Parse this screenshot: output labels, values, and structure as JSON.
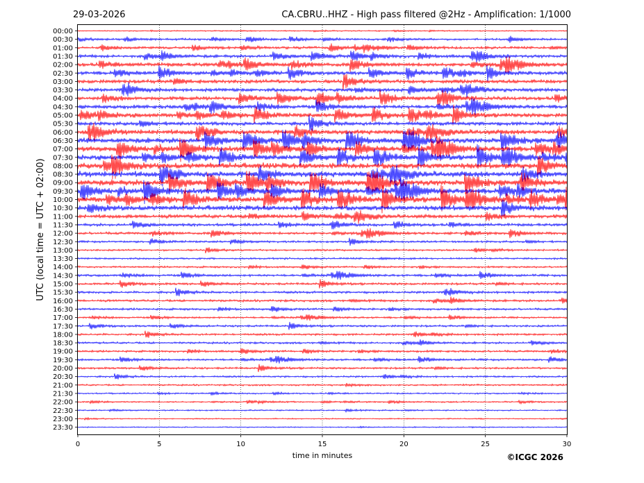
{
  "date": "29-03-2026",
  "title": "CA.CBRU..HHZ - High pass filtered @2Hz - Amplification: 1/1000",
  "copyright": "©ICGC 2026",
  "chart_data": {
    "type": "helicorder",
    "xlabel": "time in minutes",
    "ylabel": "UTC (local time = UTC + 02:00)",
    "xlim": [
      0,
      30
    ],
    "xticks": [
      0,
      5,
      10,
      15,
      20,
      25,
      30
    ],
    "grid": "vertical dotted every 5 minutes",
    "trace_colors": [
      "#ff0000",
      "#0000ff"
    ],
    "rows": [
      {
        "label": "00:00",
        "activity": 0.05
      },
      {
        "label": "00:30",
        "activity": 0.25
      },
      {
        "label": "01:00",
        "activity": 0.35
      },
      {
        "label": "01:30",
        "activity": 0.45
      },
      {
        "label": "02:00",
        "activity": 0.6
      },
      {
        "label": "02:30",
        "activity": 0.55
      },
      {
        "label": "03:00",
        "activity": 0.6
      },
      {
        "label": "03:30",
        "activity": 0.55
      },
      {
        "label": "04:00",
        "activity": 0.6
      },
      {
        "label": "04:30",
        "activity": 0.6
      },
      {
        "label": "05:00",
        "activity": 0.7
      },
      {
        "label": "05:30",
        "activity": 0.6
      },
      {
        "label": "06:00",
        "activity": 0.8
      },
      {
        "label": "06:30",
        "activity": 0.9
      },
      {
        "label": "07:00",
        "activity": 0.9
      },
      {
        "label": "07:30",
        "activity": 0.85
      },
      {
        "label": "08:00",
        "activity": 1.0
      },
      {
        "label": "08:30",
        "activity": 1.0
      },
      {
        "label": "09:00",
        "activity": 1.0
      },
      {
        "label": "09:30",
        "activity": 0.9
      },
      {
        "label": "10:00",
        "activity": 0.95
      },
      {
        "label": "10:30",
        "activity": 0.85
      },
      {
        "label": "11:00",
        "activity": 0.6
      },
      {
        "label": "11:30",
        "activity": 0.4
      },
      {
        "label": "12:00",
        "activity": 0.35
      },
      {
        "label": "12:30",
        "activity": 0.25
      },
      {
        "label": "13:00",
        "activity": 0.2
      },
      {
        "label": "13:30",
        "activity": 0.2
      },
      {
        "label": "14:00",
        "activity": 0.2
      },
      {
        "label": "14:30",
        "activity": 0.3
      },
      {
        "label": "15:00",
        "activity": 0.3
      },
      {
        "label": "15:30",
        "activity": 0.3
      },
      {
        "label": "16:00",
        "activity": 0.3
      },
      {
        "label": "16:30",
        "activity": 0.25
      },
      {
        "label": "17:00",
        "activity": 0.2
      },
      {
        "label": "17:30",
        "activity": 0.25
      },
      {
        "label": "18:00",
        "activity": 0.25
      },
      {
        "label": "18:30",
        "activity": 0.25
      },
      {
        "label": "19:00",
        "activity": 0.25
      },
      {
        "label": "19:30",
        "activity": 0.25
      },
      {
        "label": "20:00",
        "activity": 0.25
      },
      {
        "label": "20:30",
        "activity": 0.2
      },
      {
        "label": "21:00",
        "activity": 0.18
      },
      {
        "label": "21:30",
        "activity": 0.12
      },
      {
        "label": "22:00",
        "activity": 0.12
      },
      {
        "label": "22:30",
        "activity": 0.1
      },
      {
        "label": "23:00",
        "activity": 0.06
      },
      {
        "label": "23:30",
        "activity": 0.05
      }
    ]
  }
}
